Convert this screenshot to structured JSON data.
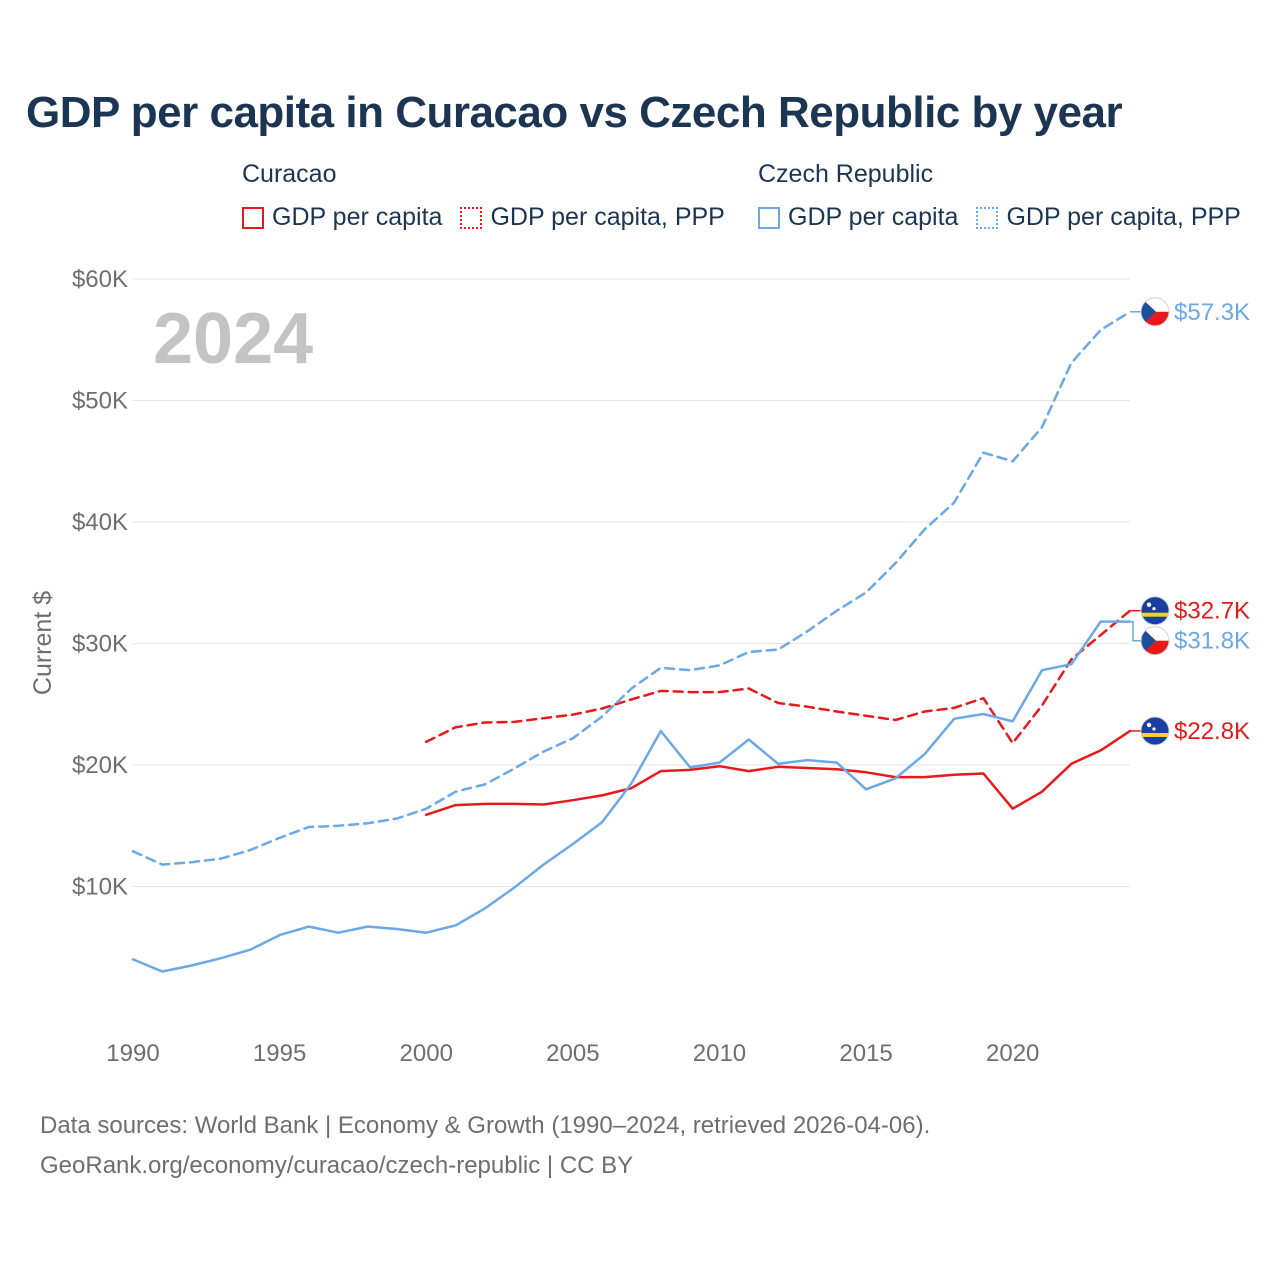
{
  "title": "GDP per capita in Curacao vs Czech Republic by year",
  "legend": {
    "groups": [
      {
        "name": "Curacao",
        "items": [
          {
            "label": "GDP per capita",
            "style": "solid",
            "color": "#e8191b"
          },
          {
            "label": "GDP per capita, PPP",
            "style": "dotted",
            "color": "#e8191b"
          }
        ]
      },
      {
        "name": "Czech Republic",
        "items": [
          {
            "label": "GDP per capita",
            "style": "solid",
            "color": "#6aa8e6"
          },
          {
            "label": "GDP per capita, PPP",
            "style": "dotted",
            "color": "#6aa8e6"
          }
        ]
      }
    ]
  },
  "year_watermark": "2024",
  "chart_data": {
    "type": "line",
    "title": "GDP per capita in Curacao vs Czech Republic by year",
    "xlabel": "",
    "ylabel": "Current $",
    "xlim": [
      1990,
      2024
    ],
    "ylim": [
      0,
      60000
    ],
    "xticks": [
      1990,
      1995,
      2000,
      2005,
      2010,
      2015,
      2020
    ],
    "xtick_labels": [
      "1990",
      "1995",
      "2000",
      "2005",
      "2010",
      "2015",
      "2020"
    ],
    "yticks": [
      10000,
      20000,
      30000,
      40000,
      50000,
      60000
    ],
    "ytick_labels": [
      "$10K",
      "$20K",
      "$30K",
      "$40K",
      "$50K",
      "$60K"
    ],
    "grid": true,
    "series": [
      {
        "name": "Curacao GDP per capita",
        "country": "Curacao",
        "color": "#e8191b",
        "dash": "solid",
        "x": [
          2000,
          2001,
          2002,
          2003,
          2004,
          2005,
          2006,
          2007,
          2008,
          2009,
          2010,
          2011,
          2012,
          2013,
          2014,
          2015,
          2016,
          2017,
          2018,
          2019,
          2020,
          2021,
          2022,
          2023,
          2024
        ],
        "y": [
          15900,
          16700,
          16800,
          16800,
          16750,
          17100,
          17500,
          18100,
          19500,
          19600,
          19900,
          19500,
          19850,
          19750,
          19650,
          19400,
          19000,
          19000,
          19200,
          19300,
          16400,
          17800,
          20100,
          21200,
          22800
        ],
        "end_label": "$22.8K",
        "flag": "curacao-flag-icon"
      },
      {
        "name": "Curacao GDP per capita, PPP",
        "country": "Curacao",
        "color": "#e8191b",
        "dash": "dashed",
        "x": [
          2000,
          2001,
          2002,
          2003,
          2004,
          2005,
          2006,
          2007,
          2008,
          2009,
          2010,
          2011,
          2012,
          2013,
          2014,
          2015,
          2016,
          2017,
          2018,
          2019,
          2020,
          2021,
          2022,
          2023,
          2024
        ],
        "y": [
          21900,
          23100,
          23500,
          23550,
          23850,
          24150,
          24650,
          25400,
          26100,
          26000,
          26000,
          26300,
          25100,
          24800,
          24400,
          24050,
          23700,
          24400,
          24700,
          25500,
          21800,
          24900,
          28700,
          30700,
          32700
        ],
        "end_label": "$32.7K",
        "flag": "curacao-flag-icon"
      },
      {
        "name": "Czech Republic GDP per capita",
        "country": "Czech Republic",
        "color": "#6aa8e6",
        "dash": "solid",
        "x": [
          1990,
          1991,
          1992,
          1993,
          1994,
          1995,
          1996,
          1997,
          1998,
          1999,
          2000,
          2001,
          2002,
          2003,
          2004,
          2005,
          2006,
          2007,
          2008,
          2009,
          2010,
          2011,
          2012,
          2013,
          2014,
          2015,
          2016,
          2017,
          2018,
          2019,
          2020,
          2021,
          2022,
          2023,
          2024
        ],
        "y": [
          4000,
          3000,
          3500,
          4100,
          4800,
          6000,
          6700,
          6200,
          6700,
          6500,
          6200,
          6800,
          8200,
          9900,
          11800,
          13500,
          15300,
          18500,
          22800,
          19800,
          20200,
          22100,
          20100,
          20400,
          20200,
          18000,
          18900,
          20900,
          23800,
          24200,
          23600,
          27800,
          28300,
          31800,
          31800
        ],
        "end_label": "$31.8K",
        "flag": "czech-flag-icon"
      },
      {
        "name": "Czech Republic GDP per capita, PPP",
        "country": "Czech Republic",
        "color": "#6aa8e6",
        "dash": "dashed",
        "x": [
          1990,
          1991,
          1992,
          1993,
          1994,
          1995,
          1996,
          1997,
          1998,
          1999,
          2000,
          2001,
          2002,
          2003,
          2004,
          2005,
          2006,
          2007,
          2008,
          2009,
          2010,
          2011,
          2012,
          2013,
          2014,
          2015,
          2016,
          2017,
          2018,
          2019,
          2020,
          2021,
          2022,
          2023,
          2024
        ],
        "y": [
          12900,
          11800,
          12000,
          12300,
          13000,
          14000,
          14900,
          15000,
          15200,
          15600,
          16400,
          17800,
          18400,
          19700,
          21100,
          22200,
          24000,
          26300,
          28000,
          27800,
          28200,
          29300,
          29500,
          31000,
          32700,
          34200,
          36600,
          39400,
          41600,
          45700,
          45000,
          47800,
          53100,
          55800,
          57300
        ],
        "end_label": "$57.3K",
        "flag": "czech-flag-icon"
      }
    ]
  },
  "footer": {
    "line1": "Data sources: World Bank | Economy & Growth (1990–2024, retrieved 2026-04-06).",
    "line2": "GeoRank.org/economy/curacao/czech-republic | CC BY"
  }
}
